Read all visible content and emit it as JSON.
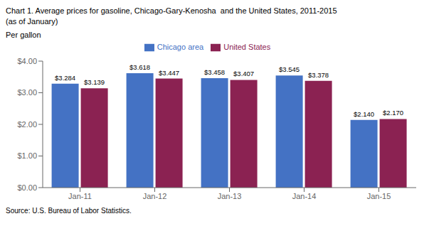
{
  "chart_data": {
    "type": "bar",
    "title": "Chart 1. Average prices for gasoline, Chicago-Gary-Kenosha  and the United States, 2011-2015",
    "subtitle": "(as of January)",
    "ylabel": "Per gallon",
    "annotations": [
      "Source: U.S. Bureau of Labor Statistics."
    ],
    "categories": [
      "Jan-11",
      "Jan-12",
      "Jan-13",
      "Jan-14",
      "Jan-15"
    ],
    "series": [
      {
        "name": "Chicago area",
        "color": "#4472C4",
        "values": [
          3.284,
          3.618,
          3.458,
          3.545,
          2.14
        ],
        "value_labels": [
          "$3.284",
          "$3.618",
          "$3.458",
          "$3.545",
          "$2.140"
        ]
      },
      {
        "name": "United States",
        "color": "#8B2252",
        "values": [
          3.139,
          3.447,
          3.407,
          3.378,
          2.17
        ],
        "value_labels": [
          "$3.139",
          "$3.447",
          "$3.407",
          "$3.378",
          "$2.170"
        ]
      }
    ],
    "ylim": [
      0,
      4.0
    ],
    "yticks": [
      {
        "value": 0.0,
        "label": "$0.00"
      },
      {
        "value": 1.0,
        "label": "$1.00"
      },
      {
        "value": 2.0,
        "label": "$2.00"
      },
      {
        "value": 3.0,
        "label": "$3.00"
      },
      {
        "value": 4.0,
        "label": "$4.00"
      }
    ],
    "data_labels": true,
    "grid": false,
    "legend": "top"
  }
}
